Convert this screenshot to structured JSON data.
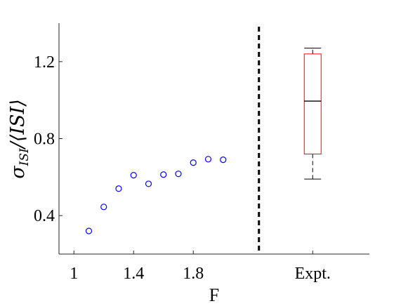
{
  "chart_data": {
    "type": "scatter",
    "xlabel": "F",
    "ylabel_main": "σ",
    "ylabel_sub": "ISI",
    "ylabel_rest": "/⟨ISI⟩",
    "xlim": [
      0.9,
      2.98
    ],
    "ylim": [
      0.2,
      1.4
    ],
    "x_ticks": [
      {
        "value": 1.0,
        "label": "1"
      },
      {
        "value": 1.4,
        "label": "1.4"
      },
      {
        "value": 1.8,
        "label": "1.8"
      },
      {
        "value": 2.6,
        "label": "Expt."
      }
    ],
    "y_ticks": [
      {
        "value": 0.4,
        "label": "0.4"
      },
      {
        "value": 0.8,
        "label": "0.8"
      },
      {
        "value": 1.2,
        "label": "1.2"
      }
    ],
    "points": [
      {
        "x": 1.1,
        "y": 0.32
      },
      {
        "x": 1.2,
        "y": 0.445
      },
      {
        "x": 1.3,
        "y": 0.54
      },
      {
        "x": 1.4,
        "y": 0.61
      },
      {
        "x": 1.5,
        "y": 0.565
      },
      {
        "x": 1.6,
        "y": 0.613
      },
      {
        "x": 1.7,
        "y": 0.617
      },
      {
        "x": 1.8,
        "y": 0.675
      },
      {
        "x": 1.9,
        "y": 0.693
      },
      {
        "x": 2.0,
        "y": 0.69
      }
    ],
    "divider_x": 2.24,
    "boxplot": {
      "x": 2.6,
      "whisker_low": 0.59,
      "q1": 0.72,
      "median": 0.995,
      "q3": 1.24,
      "whisker_high": 1.27
    },
    "colors": {
      "points": "#0000ff",
      "box": "#ff0000",
      "median": "#000000",
      "divider": "#000000",
      "axis": "#262626"
    }
  }
}
